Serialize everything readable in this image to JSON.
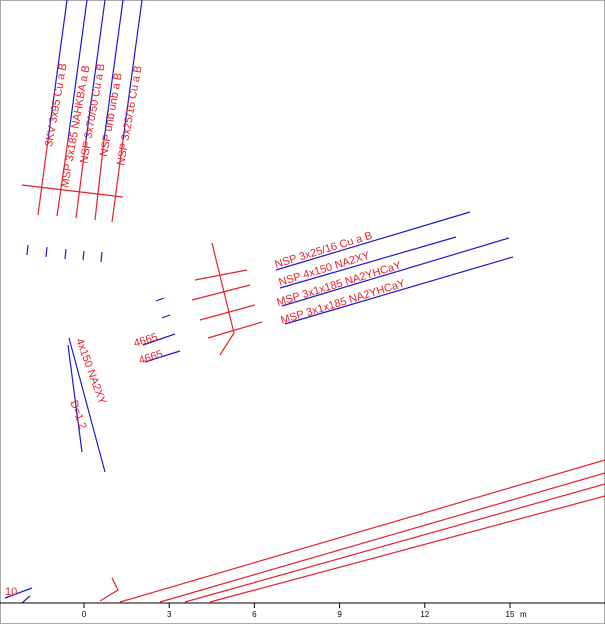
{
  "labels": [
    {
      "text": "3KV 3x95 Cu a B"
    },
    {
      "text": "MSP 3x185 NAHKBA a B"
    },
    {
      "text": "NSP 3x70/50 Cu a B"
    },
    {
      "text": "NSP unb unb a B"
    },
    {
      "text": "NSP 3x25/16 Cu a B"
    },
    {
      "text": "NSP 3x25/16 Cu a B"
    },
    {
      "text": "NSP 4x150 NA2XY"
    },
    {
      "text": "MSP 3x1x185 NA2YHCaY"
    },
    {
      "text": "MSP 3x1x185 NA2YHCaY"
    },
    {
      "text": "4665"
    },
    {
      "text": "4665"
    },
    {
      "text": "4x150 NA2XY"
    },
    {
      "text": "D=1.2"
    },
    {
      "text": "10"
    }
  ],
  "scale": {
    "ticks": [
      0,
      3,
      6,
      9,
      12,
      15
    ],
    "unit": "m"
  }
}
